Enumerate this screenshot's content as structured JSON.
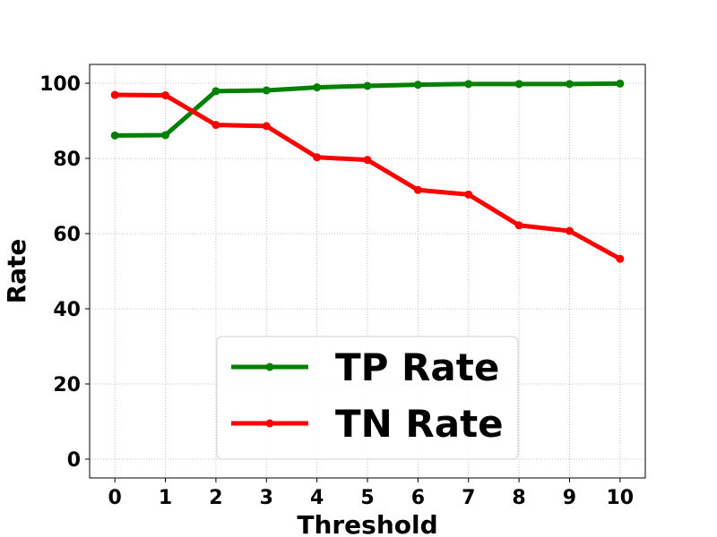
{
  "chart_data": {
    "type": "line",
    "title": "",
    "xlabel": "Threshold",
    "ylabel": "Rate",
    "x": [
      0,
      1,
      2,
      3,
      4,
      5,
      6,
      7,
      8,
      9,
      10
    ],
    "xlim": [
      -0.5,
      10.5
    ],
    "ylim": [
      -5,
      105
    ],
    "x_ticks": [
      0,
      1,
      2,
      3,
      4,
      5,
      6,
      7,
      8,
      9,
      10
    ],
    "y_ticks": [
      0,
      20,
      40,
      60,
      80,
      100
    ],
    "grid": true,
    "legend_position": "lower center",
    "series": [
      {
        "name": "TP Rate",
        "color": "#008000",
        "values": [
          86.1,
          86.2,
          97.9,
          98.1,
          98.9,
          99.3,
          99.6,
          99.8,
          99.8,
          99.8,
          99.9
        ]
      },
      {
        "name": "TN Rate",
        "color": "#ff0000",
        "values": [
          96.9,
          96.8,
          88.9,
          88.6,
          80.3,
          79.6,
          71.6,
          70.4,
          62.2,
          60.7,
          53.3
        ]
      }
    ]
  }
}
